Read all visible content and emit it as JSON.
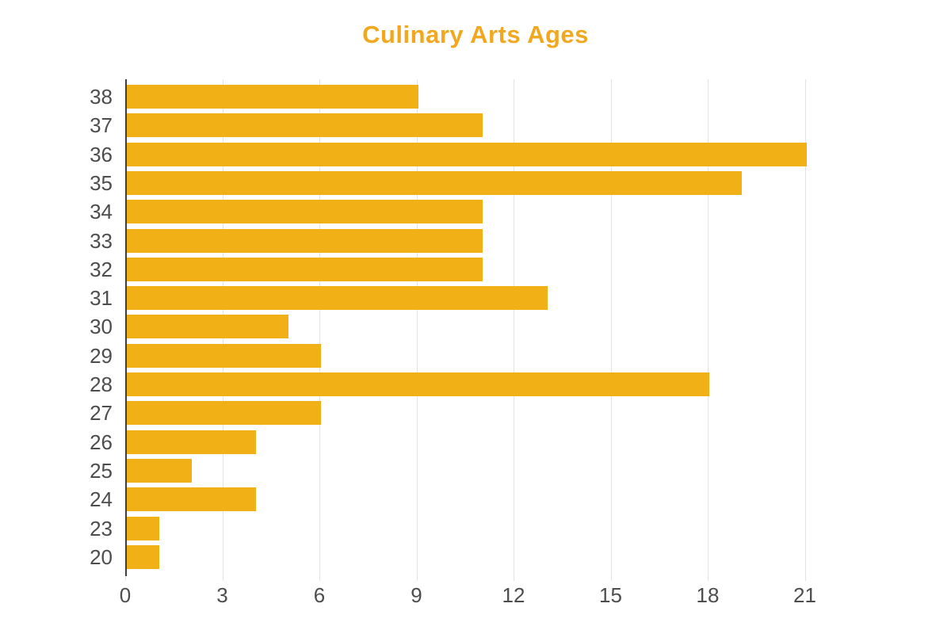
{
  "title": {
    "text": "Culinary Arts Ages",
    "color": "#F2A81E"
  },
  "chart_data": {
    "type": "bar",
    "orientation": "horizontal",
    "title": "Culinary Arts Ages",
    "categories": [
      "38",
      "37",
      "36",
      "35",
      "34",
      "33",
      "32",
      "31",
      "30",
      "29",
      "28",
      "27",
      "26",
      "25",
      "24",
      "23",
      "20"
    ],
    "values": [
      9,
      11,
      21,
      19,
      11,
      11,
      11,
      13,
      5,
      6,
      18,
      6,
      4,
      2,
      4,
      1,
      1
    ],
    "xlabel": "",
    "ylabel": "",
    "xticks": [
      0,
      3,
      6,
      9,
      12,
      15,
      18,
      21
    ],
    "xlim": [
      0,
      24
    ],
    "grid": true,
    "legend": "none",
    "colors": {
      "bar": "#F0B016",
      "title": "#F2A81E",
      "axis_labels": "#4D4D4D",
      "gridline": "#E3E3E3",
      "axis_line": "#3F3F3F",
      "background": "#FFFFFF"
    }
  }
}
